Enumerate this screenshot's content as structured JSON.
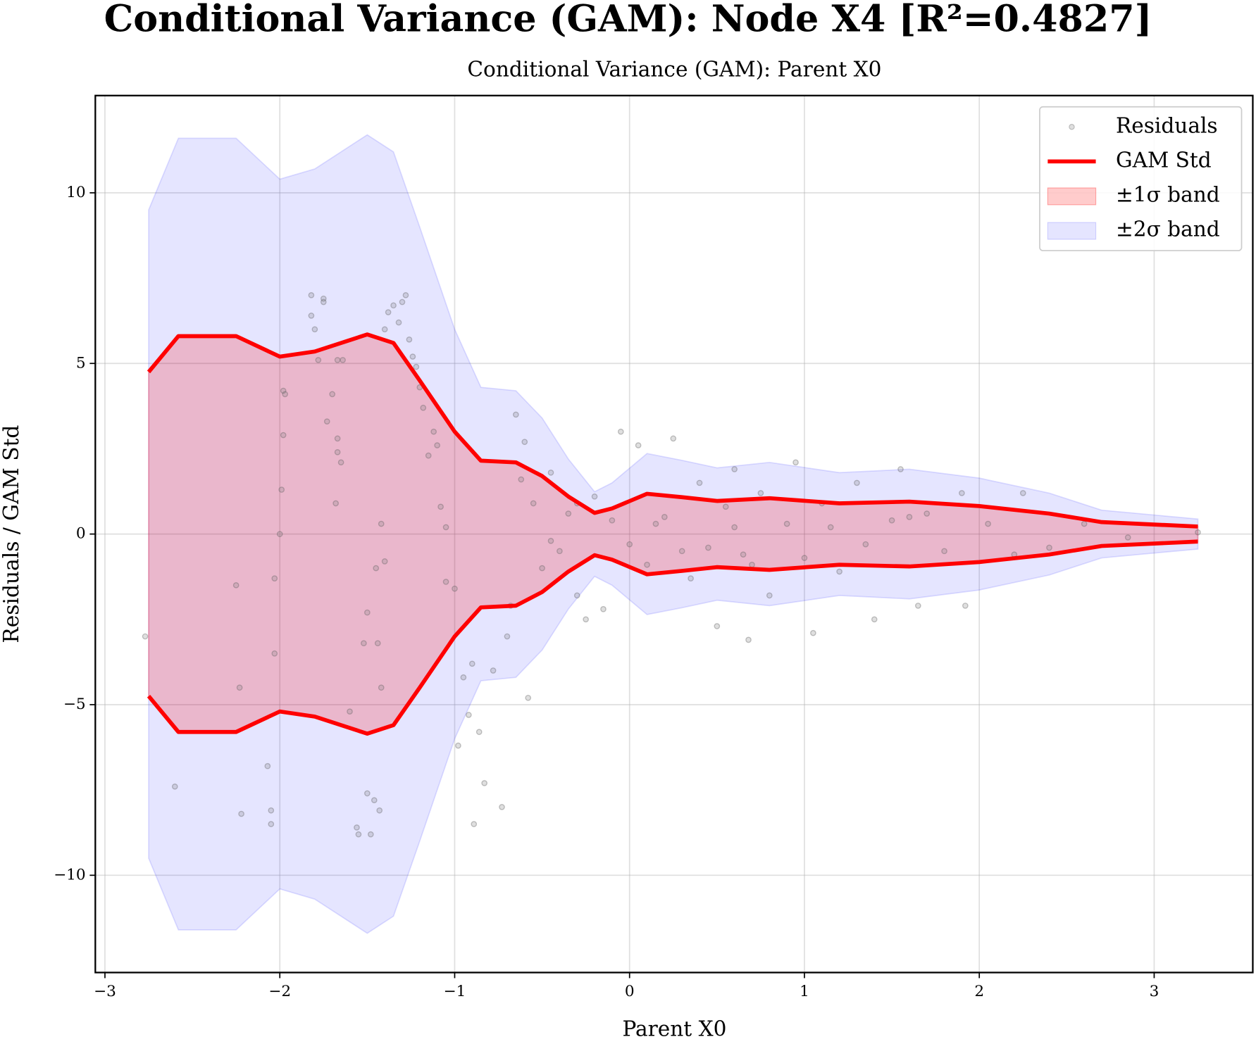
{
  "chart_data": {
    "type": "scatter",
    "title": "Conditional Variance (GAM): Node X4 [R²=0.4827]",
    "subtitle": "Conditional Variance (GAM): Parent X0",
    "x_label": "Parent X0",
    "y_label": "Residuals / GAM Std",
    "xlim": [
      -3.055,
      3.564
    ],
    "ylim": [
      -12.85,
      12.85
    ],
    "xticks": [
      {
        "value": -3,
        "label": "−3"
      },
      {
        "value": -2,
        "label": "−2"
      },
      {
        "value": -1,
        "label": "−1"
      },
      0,
      1,
      2,
      3
    ],
    "yticks": [
      {
        "value": -10,
        "label": "−10"
      },
      {
        "value": -5,
        "label": "−5"
      },
      0,
      5,
      10
    ],
    "grid": true,
    "legend": "upper right",
    "series": [
      {
        "name": "Residuals",
        "type": "scatter",
        "color": "#808080",
        "x": [
          -2.77,
          -2.6,
          -2.25,
          -2.22,
          -2.23,
          -2.05,
          -2.05,
          -2.07,
          -2.03,
          -2.03,
          -2.0,
          -1.99,
          -1.98,
          -1.98,
          -1.97,
          -1.82,
          -1.82,
          -1.8,
          -1.75,
          -1.75,
          -1.73,
          -1.78,
          -1.7,
          -1.68,
          -1.67,
          -1.67,
          -1.65,
          -1.67,
          -1.64,
          -1.6,
          -1.56,
          -1.55,
          -1.52,
          -1.5,
          -1.5,
          -1.48,
          -1.46,
          -1.45,
          -1.44,
          -1.43,
          -1.42,
          -1.42,
          -1.4,
          -1.4,
          -1.38,
          -1.35,
          -1.32,
          -1.3,
          -1.28,
          -1.26,
          -1.24,
          -1.22,
          -1.2,
          -1.18,
          -1.15,
          -1.12,
          -1.1,
          -1.08,
          -1.05,
          -1.05,
          -1.0,
          -0.98,
          -0.95,
          -0.92,
          -0.9,
          -0.89,
          -0.86,
          -0.83,
          -0.78,
          -0.73,
          -0.7,
          -0.68,
          -0.65,
          -0.62,
          -0.6,
          -0.58,
          -0.55,
          -0.5,
          -0.45,
          -0.4,
          -0.35,
          -0.3,
          -0.25,
          -0.2,
          -0.15,
          -0.1,
          -0.05,
          0.05,
          0.1,
          0.2,
          0.25,
          0.35,
          0.4,
          0.45,
          0.5,
          0.55,
          0.6,
          0.65,
          0.68,
          0.75,
          0.8,
          0.9,
          0.95,
          1.0,
          1.05,
          1.1,
          1.2,
          1.3,
          1.4,
          1.5,
          1.55,
          1.65,
          1.7,
          1.8,
          1.9,
          1.92,
          2.05,
          2.2,
          2.25,
          2.4,
          2.6,
          2.85,
          3.25,
          -0.45,
          -0.3,
          0.0,
          0.15,
          0.3,
          0.6,
          0.7,
          1.15,
          1.35,
          1.6
        ],
        "values": [
          -3.0,
          -7.4,
          -1.5,
          -8.2,
          -4.5,
          -8.1,
          -8.5,
          -6.8,
          -3.5,
          -1.3,
          0.0,
          1.3,
          2.9,
          4.2,
          4.1,
          6.4,
          7.0,
          6.0,
          6.9,
          6.8,
          3.3,
          5.1,
          4.1,
          0.9,
          2.8,
          2.4,
          2.1,
          5.1,
          5.1,
          -5.2,
          -8.6,
          -8.8,
          -3.2,
          -2.3,
          -7.6,
          -8.8,
          -7.8,
          -1.0,
          -3.2,
          -8.1,
          0.3,
          -4.5,
          -0.8,
          6.0,
          6.5,
          6.7,
          6.2,
          6.8,
          7.0,
          5.7,
          5.2,
          4.9,
          4.3,
          3.7,
          2.3,
          3.0,
          2.6,
          0.8,
          0.2,
          -1.4,
          -1.6,
          -6.2,
          -4.2,
          -5.3,
          -3.8,
          -8.5,
          -5.8,
          -7.3,
          -4.0,
          -8.0,
          -3.0,
          -2.1,
          3.5,
          1.6,
          2.7,
          -4.8,
          0.9,
          -1.0,
          1.8,
          -0.5,
          0.6,
          -1.8,
          -2.5,
          1.1,
          -2.2,
          0.4,
          3.0,
          2.6,
          -0.9,
          0.5,
          2.8,
          -1.3,
          1.5,
          -0.4,
          -2.7,
          0.8,
          1.9,
          -0.6,
          -3.1,
          1.2,
          -1.8,
          0.3,
          2.1,
          -0.7,
          -2.9,
          0.9,
          -1.1,
          1.5,
          -2.5,
          0.4,
          1.9,
          -2.1,
          0.6,
          -0.5,
          1.2,
          -2.1,
          0.3,
          -0.6,
          1.2,
          -0.4,
          0.3,
          -0.1,
          0.05,
          -0.2,
          0.9,
          -0.3,
          0.3,
          -0.5,
          0.2,
          -0.9,
          0.2,
          -0.3,
          0.5
        ]
      },
      {
        "name": "GAM Std",
        "type": "line",
        "color": "#ff0000",
        "x": [
          -2.75,
          -2.58,
          -2.25,
          -2.0,
          -1.8,
          -1.5,
          -1.35,
          -1.2,
          -1.0,
          -0.85,
          -0.65,
          -0.5,
          -0.35,
          -0.2,
          -0.1,
          0.1,
          0.3,
          0.5,
          0.8,
          1.2,
          1.6,
          2.0,
          2.4,
          2.7,
          3.25
        ],
        "values": [
          4.75,
          5.8,
          5.8,
          5.2,
          5.35,
          5.85,
          5.6,
          4.5,
          3.0,
          2.15,
          2.1,
          1.7,
          1.1,
          0.62,
          0.75,
          1.18,
          1.08,
          0.97,
          1.05,
          0.9,
          0.95,
          0.82,
          0.6,
          0.35,
          0.22
        ],
        "lower": [
          -4.75,
          -5.8,
          -5.8,
          -5.2,
          -5.35,
          -5.85,
          -5.6,
          -4.5,
          -3.0,
          -2.15,
          -2.1,
          -1.7,
          -1.1,
          -0.62,
          -0.75,
          -1.18,
          -1.08,
          -0.97,
          -1.05,
          -0.9,
          -0.95,
          -0.82,
          -0.6,
          -0.35,
          -0.22
        ]
      },
      {
        "name": "±1σ band",
        "type": "band",
        "color": "#ff0000",
        "opacity": 0.2,
        "x": [
          -2.75,
          -2.58,
          -2.25,
          -2.0,
          -1.8,
          -1.5,
          -1.35,
          -1.2,
          -1.0,
          -0.85,
          -0.65,
          -0.5,
          -0.35,
          -0.2,
          -0.1,
          0.1,
          0.3,
          0.5,
          0.8,
          1.2,
          1.6,
          2.0,
          2.4,
          2.7,
          3.25
        ],
        "upper": [
          4.75,
          5.8,
          5.8,
          5.2,
          5.35,
          5.85,
          5.6,
          4.5,
          3.0,
          2.15,
          2.1,
          1.7,
          1.1,
          0.62,
          0.75,
          1.18,
          1.08,
          0.97,
          1.05,
          0.9,
          0.95,
          0.82,
          0.6,
          0.35,
          0.22
        ],
        "lower": [
          -4.75,
          -5.8,
          -5.8,
          -5.2,
          -5.35,
          -5.85,
          -5.6,
          -4.5,
          -3.0,
          -2.15,
          -2.1,
          -1.7,
          -1.1,
          -0.62,
          -0.75,
          -1.18,
          -1.08,
          -0.97,
          -1.05,
          -0.9,
          -0.95,
          -0.82,
          -0.6,
          -0.35,
          -0.22
        ]
      },
      {
        "name": "±2σ band",
        "type": "band",
        "color": "#0000ff",
        "opacity": 0.1,
        "x": [
          -2.75,
          -2.58,
          -2.25,
          -2.0,
          -1.8,
          -1.5,
          -1.35,
          -1.2,
          -1.0,
          -0.85,
          -0.65,
          -0.5,
          -0.35,
          -0.2,
          -0.1,
          0.1,
          0.3,
          0.5,
          0.8,
          1.2,
          1.6,
          2.0,
          2.4,
          2.7,
          3.25
        ],
        "upper": [
          9.5,
          11.6,
          11.6,
          10.4,
          10.7,
          11.7,
          11.2,
          9.0,
          6.0,
          4.3,
          4.2,
          3.4,
          2.2,
          1.24,
          1.5,
          2.36,
          2.16,
          1.94,
          2.1,
          1.8,
          1.9,
          1.64,
          1.2,
          0.7,
          0.44
        ],
        "lower": [
          -9.5,
          -11.6,
          -11.6,
          -10.4,
          -10.7,
          -11.7,
          -11.2,
          -9.0,
          -6.0,
          -4.3,
          -4.2,
          -3.4,
          -2.2,
          -1.24,
          -1.5,
          -2.36,
          -2.16,
          -1.94,
          -2.1,
          -1.8,
          -1.9,
          -1.64,
          -1.2,
          -0.7,
          -0.44
        ]
      }
    ]
  }
}
